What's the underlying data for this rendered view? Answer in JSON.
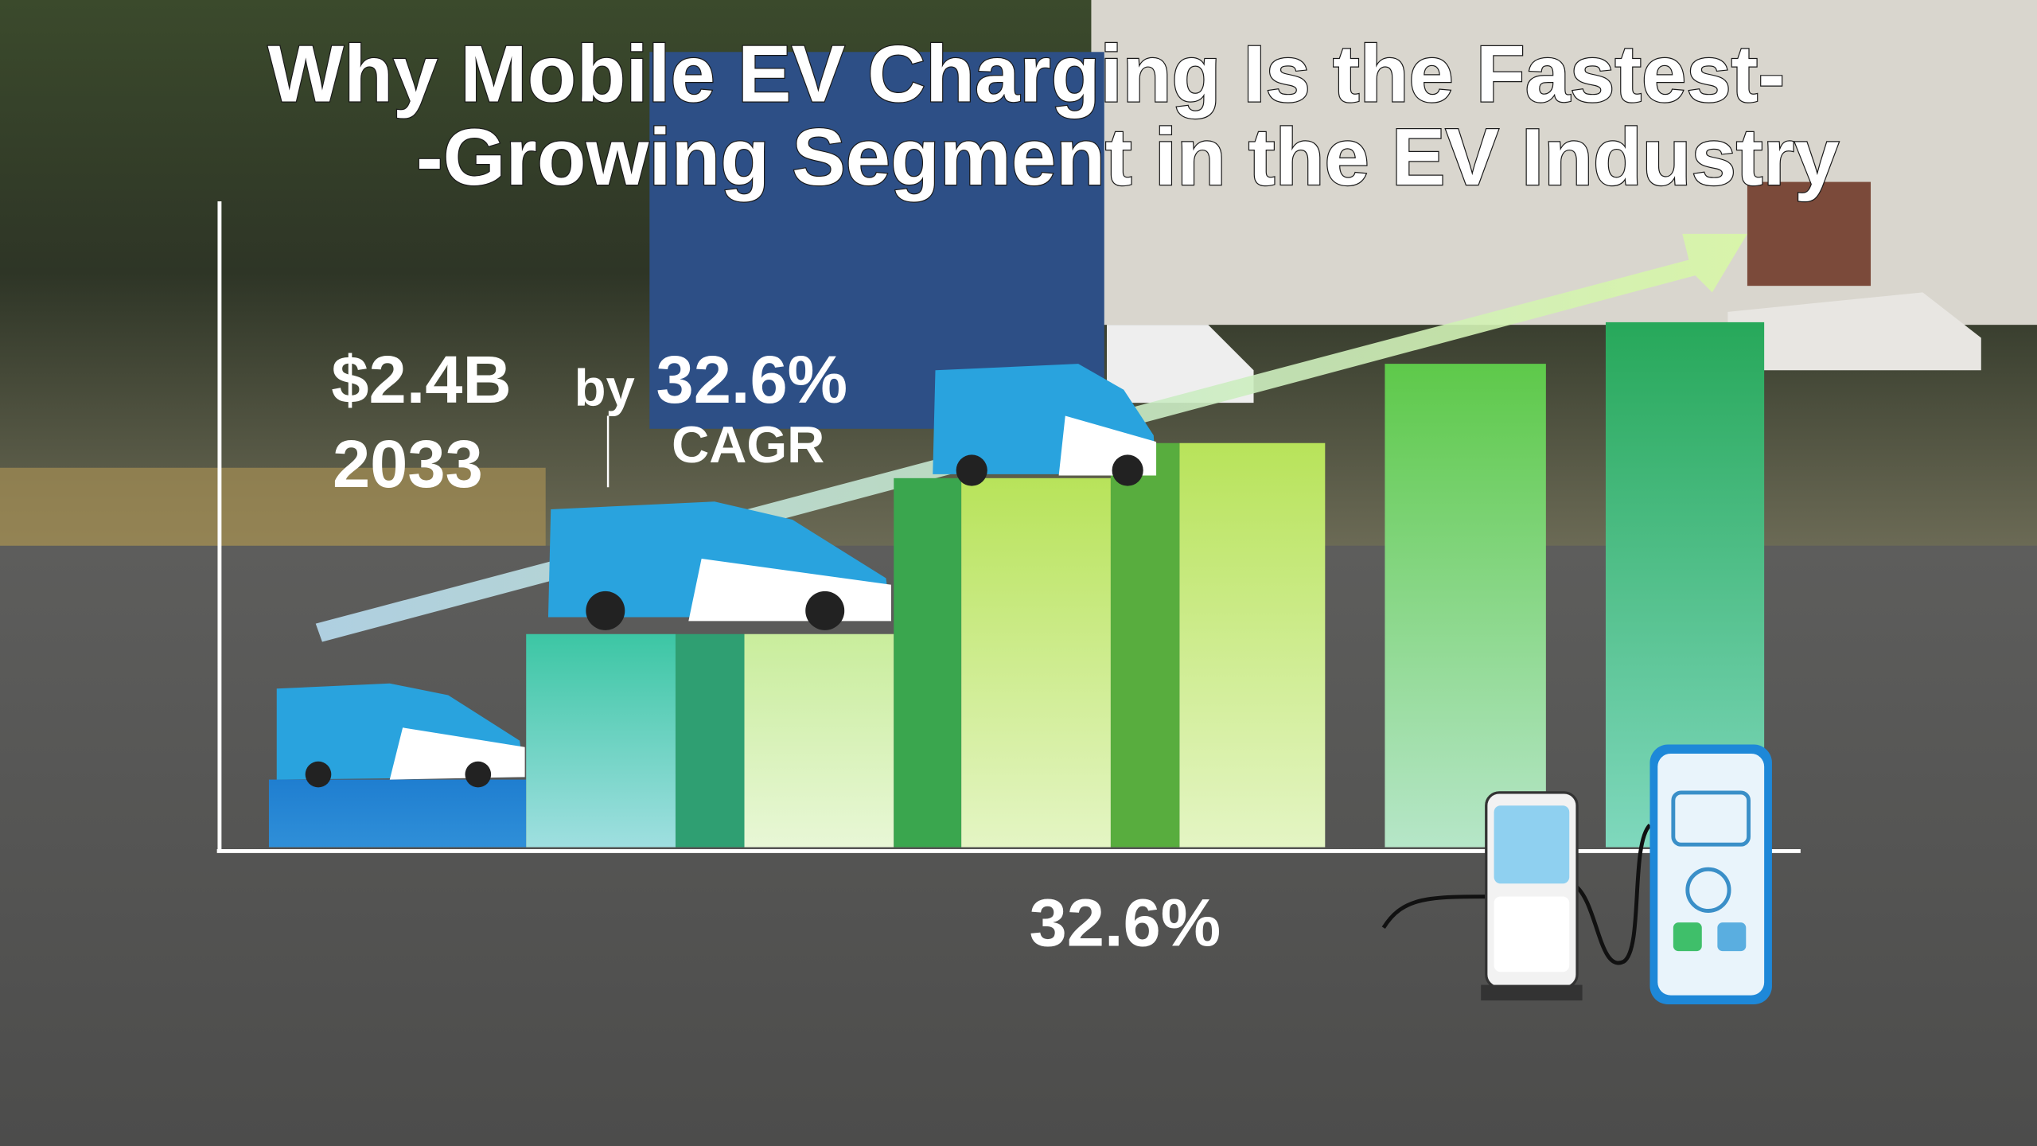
{
  "title": {
    "lines": [
      "Why Mobile EV Charging Is the Fastest-",
      "-Growing Segment in the EV Industry"
    ]
  },
  "callout": {
    "amount": "$2.4B",
    "by": "by",
    "year": "2033",
    "rate": "32.6%",
    "rate_label": "CAGR"
  },
  "axis_label": "32.6%"
}
